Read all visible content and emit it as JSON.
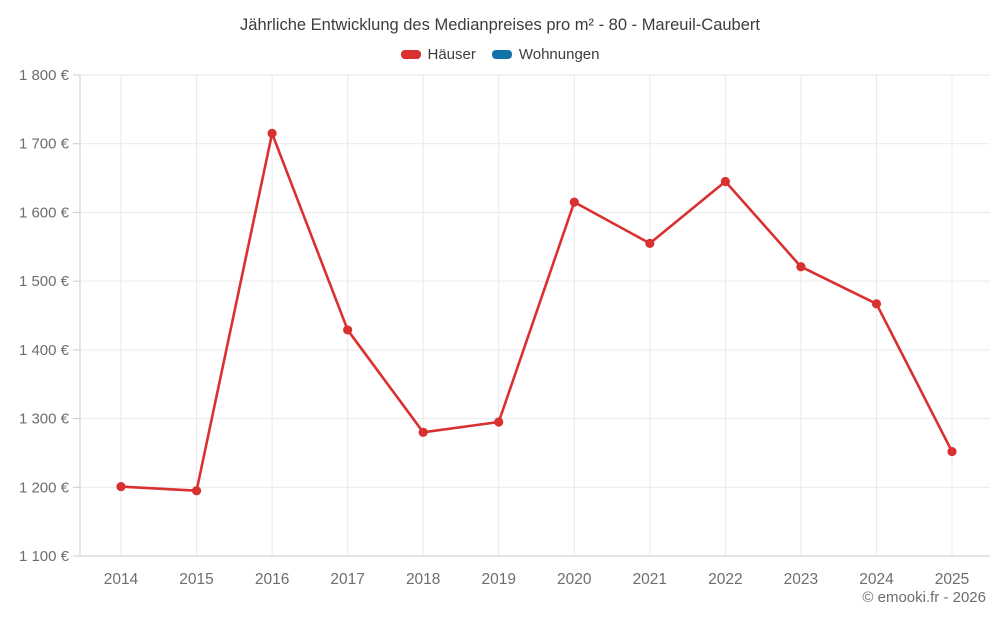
{
  "chart_data": {
    "type": "line",
    "title": "Jährliche Entwicklung des Medianpreises pro m² - 80 - Mareuil-Caubert",
    "x": [
      "2014",
      "2015",
      "2016",
      "2017",
      "2018",
      "2019",
      "2020",
      "2021",
      "2022",
      "2023",
      "2024",
      "2025"
    ],
    "series": [
      {
        "name": "Häuser",
        "color": "#d93030",
        "values": [
          1201,
          1195,
          1715,
          1429,
          1280,
          1295,
          1615,
          1555,
          1645,
          1521,
          1467,
          1252
        ]
      },
      {
        "name": "Wohnungen",
        "color": "#1272a8",
        "values": []
      }
    ],
    "xlabel": "",
    "ylabel": "",
    "ylim": [
      1100,
      1800
    ],
    "yticks": [
      {
        "value": 1100,
        "label": "1 100 €"
      },
      {
        "value": 1200,
        "label": "1 200 €"
      },
      {
        "value": 1300,
        "label": "1 300 €"
      },
      {
        "value": 1400,
        "label": "1 400 €"
      },
      {
        "value": 1500,
        "label": "1 500 €"
      },
      {
        "value": 1600,
        "label": "1 600 €"
      },
      {
        "value": 1700,
        "label": "1 700 €"
      },
      {
        "value": 1800,
        "label": "1 800 €"
      }
    ],
    "grid": true,
    "legend_position": "top",
    "footer": "© emooki.fr - 2026",
    "colors": {
      "grid": "#e9e9e9",
      "axis": "#cccccc",
      "tick_label": "#6e6e6e",
      "title_text": "#3d3d3d"
    }
  }
}
